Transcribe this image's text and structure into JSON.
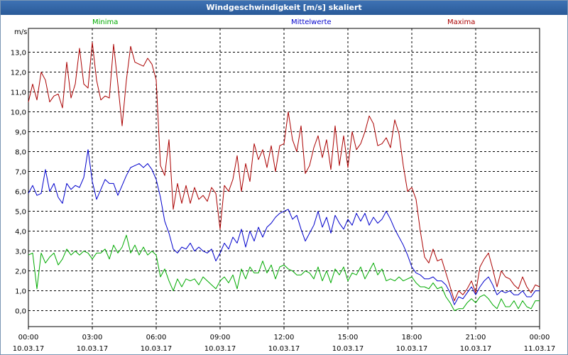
{
  "chart_data": {
    "type": "line",
    "title": "Windgeschwindigkeit [m/s] skaliert",
    "ylabel": "m/s",
    "ylim": [
      -0.8,
      14.2
    ],
    "yticks": [
      0,
      1,
      2,
      3,
      4,
      5,
      6,
      7,
      8,
      9,
      10,
      11,
      12,
      13
    ],
    "ytick_labels": [
      "0,0",
      "1,0",
      "2,0",
      "3,0",
      "4,0",
      "5,0",
      "6,0",
      "7,0",
      "8,0",
      "9,0",
      "10,0",
      "11,0",
      "12,0",
      "13,0"
    ],
    "xlim": [
      0,
      24
    ],
    "xticks": [
      0,
      3,
      6,
      9,
      12,
      15,
      18,
      21,
      24
    ],
    "xtick_times": [
      "00:00",
      "03:00",
      "06:00",
      "09:00",
      "12:00",
      "15:00",
      "18:00",
      "21:00",
      "00:00"
    ],
    "xtick_dates": [
      "10.03.17",
      "10.03.17",
      "10.03.17",
      "10.03.17",
      "10.03.17",
      "10.03.17",
      "10.03.17",
      "10.03.17",
      "11.03.17"
    ],
    "grid": true,
    "legend": [
      {
        "name": "Minima",
        "color": "#00aa00"
      },
      {
        "name": "Mittelwerte",
        "color": "#0000cc"
      },
      {
        "name": "Maxima",
        "color": "#aa0000"
      }
    ],
    "series": [
      {
        "name": "Maxima",
        "color": "#aa0000",
        "x": [
          0,
          0.2,
          0.4,
          0.6,
          0.8,
          1,
          1.2,
          1.4,
          1.6,
          1.8,
          2,
          2.2,
          2.4,
          2.6,
          2.8,
          3,
          3.2,
          3.4,
          3.6,
          3.8,
          4,
          4.2,
          4.4,
          4.6,
          4.8,
          5,
          5.2,
          5.4,
          5.6,
          5.8,
          6,
          6.2,
          6.4,
          6.6,
          6.8,
          7,
          7.2,
          7.4,
          7.6,
          7.8,
          8,
          8.2,
          8.4,
          8.6,
          8.8,
          9,
          9.2,
          9.4,
          9.6,
          9.8,
          10,
          10.2,
          10.4,
          10.6,
          10.8,
          11,
          11.2,
          11.4,
          11.6,
          11.8,
          12,
          12.2,
          12.4,
          12.6,
          12.8,
          13,
          13.2,
          13.4,
          13.6,
          13.8,
          14,
          14.2,
          14.4,
          14.6,
          14.8,
          15,
          15.2,
          15.4,
          15.6,
          15.8,
          16,
          16.2,
          16.4,
          16.6,
          16.8,
          17,
          17.2,
          17.4,
          17.6,
          17.8,
          18,
          18.2,
          18.4,
          18.6,
          18.8,
          19,
          19.2,
          19.4,
          19.6,
          19.8,
          20,
          20.2,
          20.4,
          20.6,
          20.8,
          21,
          21.2,
          21.4,
          21.6,
          21.8,
          22,
          22.2,
          22.4,
          22.6,
          22.8,
          23,
          23.2,
          23.4,
          23.6,
          23.8,
          24
        ],
        "values": [
          10.5,
          11.4,
          10.6,
          12.0,
          11.6,
          10.5,
          10.8,
          10.9,
          10.2,
          12.5,
          10.7,
          11.4,
          13.2,
          11.4,
          11.2,
          13.5,
          11.6,
          10.6,
          10.8,
          10.7,
          13.4,
          11.4,
          9.3,
          11.6,
          13.3,
          12.5,
          12.4,
          12.3,
          12.7,
          12.4,
          11.6,
          7.3,
          6.8,
          8.6,
          5.1,
          6.4,
          5.4,
          6.3,
          5.4,
          6.2,
          5.6,
          5.8,
          5.5,
          6.2,
          5.9,
          4.1,
          6.3,
          6.0,
          6.6,
          7.8,
          6.0,
          7.4,
          6.5,
          8.4,
          7.6,
          8.1,
          7.2,
          8.3,
          7.0,
          8.3,
          8.4,
          10.0,
          8.6,
          8.0,
          9.3,
          6.9,
          7.3,
          8.2,
          8.8,
          7.7,
          8.6,
          7.1,
          9.3,
          7.3,
          8.8,
          7.2,
          9.0,
          8.1,
          8.4,
          9.0,
          9.8,
          9.4,
          8.3,
          8.4,
          8.7,
          8.2,
          9.6,
          8.9,
          7.3,
          6.0,
          6.2,
          5.6,
          4.0,
          2.7,
          2.4,
          3.1,
          2.5,
          2.6,
          1.9,
          1.2,
          0.5,
          1.0,
          0.8,
          1.1,
          1.5,
          0.9,
          2.2,
          2.6,
          2.9,
          2.1,
          1.2,
          2.0,
          1.7,
          1.6,
          1.3,
          1.1,
          1.7,
          1.2,
          0.9,
          1.3,
          1.2
        ]
      },
      {
        "name": "Mittelwerte",
        "color": "#0000cc",
        "x": [
          0,
          0.2,
          0.4,
          0.6,
          0.8,
          1,
          1.2,
          1.4,
          1.6,
          1.8,
          2,
          2.2,
          2.4,
          2.6,
          2.8,
          3,
          3.2,
          3.4,
          3.6,
          3.8,
          4,
          4.2,
          4.4,
          4.6,
          4.8,
          5,
          5.2,
          5.4,
          5.6,
          5.8,
          6,
          6.2,
          6.4,
          6.6,
          6.8,
          7,
          7.2,
          7.4,
          7.6,
          7.8,
          8,
          8.2,
          8.4,
          8.6,
          8.8,
          9,
          9.2,
          9.4,
          9.6,
          9.8,
          10,
          10.2,
          10.4,
          10.6,
          10.8,
          11,
          11.2,
          11.4,
          11.6,
          11.8,
          12,
          12.2,
          12.4,
          12.6,
          12.8,
          13,
          13.2,
          13.4,
          13.6,
          13.8,
          14,
          14.2,
          14.4,
          14.6,
          14.8,
          15,
          15.2,
          15.4,
          15.6,
          15.8,
          16,
          16.2,
          16.4,
          16.6,
          16.8,
          17,
          17.2,
          17.4,
          17.6,
          17.8,
          18,
          18.2,
          18.4,
          18.6,
          18.8,
          19,
          19.2,
          19.4,
          19.6,
          19.8,
          20,
          20.2,
          20.4,
          20.6,
          20.8,
          21,
          21.2,
          21.4,
          21.6,
          21.8,
          22,
          22.2,
          22.4,
          22.6,
          22.8,
          23,
          23.2,
          23.4,
          23.6,
          23.8,
          24
        ],
        "values": [
          5.9,
          6.3,
          5.8,
          5.9,
          7.1,
          6.0,
          6.4,
          5.7,
          5.4,
          6.4,
          6.1,
          6.3,
          6.2,
          6.7,
          8.1,
          6.5,
          5.6,
          6.1,
          6.6,
          6.4,
          6.4,
          5.8,
          6.3,
          6.8,
          7.2,
          7.3,
          7.4,
          7.2,
          7.4,
          7.1,
          6.6,
          5.7,
          4.5,
          3.9,
          3.1,
          2.9,
          3.2,
          3.1,
          3.4,
          3.0,
          3.2,
          3.0,
          2.9,
          3.1,
          2.5,
          2.9,
          3.4,
          3.1,
          3.7,
          3.4,
          4.1,
          3.2,
          4.0,
          3.5,
          4.2,
          3.7,
          4.2,
          4.4,
          4.7,
          4.9,
          5.0,
          5.1,
          4.6,
          4.8,
          4.1,
          3.5,
          3.9,
          4.3,
          5.0,
          4.2,
          4.7,
          3.9,
          4.8,
          4.4,
          4.1,
          4.6,
          4.3,
          4.9,
          4.5,
          4.9,
          4.3,
          4.7,
          4.4,
          4.6,
          5.0,
          4.6,
          4.1,
          3.7,
          3.3,
          2.8,
          2.2,
          1.9,
          1.8,
          1.6,
          1.6,
          1.7,
          1.5,
          1.5,
          1.3,
          0.9,
          0.3,
          0.7,
          0.6,
          0.9,
          1.2,
          0.8,
          1.2,
          1.5,
          1.7,
          1.3,
          0.8,
          1.0,
          0.9,
          1.0,
          0.8,
          0.8,
          1.0,
          0.7,
          0.7,
          1.0,
          1.0
        ]
      },
      {
        "name": "Minima",
        "color": "#00aa00",
        "x": [
          0,
          0.2,
          0.4,
          0.6,
          0.8,
          1,
          1.2,
          1.4,
          1.6,
          1.8,
          2,
          2.2,
          2.4,
          2.6,
          2.8,
          3,
          3.2,
          3.4,
          3.6,
          3.8,
          4,
          4.2,
          4.4,
          4.6,
          4.8,
          5,
          5.2,
          5.4,
          5.6,
          5.8,
          6,
          6.2,
          6.4,
          6.6,
          6.8,
          7,
          7.2,
          7.4,
          7.6,
          7.8,
          8,
          8.2,
          8.4,
          8.6,
          8.8,
          9,
          9.2,
          9.4,
          9.6,
          9.8,
          10,
          10.2,
          10.4,
          10.6,
          10.8,
          11,
          11.2,
          11.4,
          11.6,
          11.8,
          12,
          12.2,
          12.4,
          12.6,
          12.8,
          13,
          13.2,
          13.4,
          13.6,
          13.8,
          14,
          14.2,
          14.4,
          14.6,
          14.8,
          15,
          15.2,
          15.4,
          15.6,
          15.8,
          16,
          16.2,
          16.4,
          16.6,
          16.8,
          17,
          17.2,
          17.4,
          17.6,
          17.8,
          18,
          18.2,
          18.4,
          18.6,
          18.8,
          19,
          19.2,
          19.4,
          19.6,
          19.8,
          20,
          20.2,
          20.4,
          20.6,
          20.8,
          21,
          21.2,
          21.4,
          21.6,
          21.8,
          22,
          22.2,
          22.4,
          22.6,
          22.8,
          23,
          23.2,
          23.4,
          23.6,
          23.8,
          24
        ],
        "values": [
          2.8,
          2.9,
          1.1,
          2.9,
          2.4,
          2.7,
          2.9,
          2.3,
          2.6,
          3.1,
          2.8,
          3.0,
          2.8,
          3.0,
          2.9,
          2.6,
          2.9,
          2.9,
          3.1,
          2.6,
          3.3,
          2.9,
          3.2,
          3.8,
          2.9,
          3.3,
          2.8,
          3.2,
          2.8,
          3.0,
          2.8,
          1.7,
          2.1,
          1.5,
          1.0,
          1.6,
          1.2,
          1.6,
          1.5,
          1.6,
          1.3,
          1.7,
          1.5,
          1.3,
          1.1,
          1.5,
          1.7,
          1.4,
          1.8,
          1.1,
          2.1,
          1.6,
          2.2,
          1.9,
          1.9,
          2.5,
          1.9,
          2.3,
          1.6,
          2.2,
          2.3,
          2.1,
          2.0,
          1.8,
          1.8,
          2.0,
          1.9,
          1.6,
          2.2,
          1.5,
          2.0,
          1.4,
          2.1,
          1.8,
          2.2,
          1.5,
          1.9,
          1.8,
          2.2,
          1.6,
          2.0,
          2.4,
          1.8,
          2.1,
          1.5,
          1.6,
          1.5,
          1.7,
          1.5,
          1.6,
          1.7,
          1.4,
          1.2,
          1.2,
          1.1,
          1.4,
          1.1,
          1.2,
          0.7,
          0.4,
          0.0,
          0.1,
          0.1,
          0.4,
          0.6,
          0.4,
          0.7,
          0.8,
          0.6,
          0.3,
          0.1,
          0.6,
          0.2,
          0.2,
          0.5,
          0.1,
          0.5,
          0.2,
          0.1,
          0.5,
          0.5
        ]
      }
    ]
  }
}
